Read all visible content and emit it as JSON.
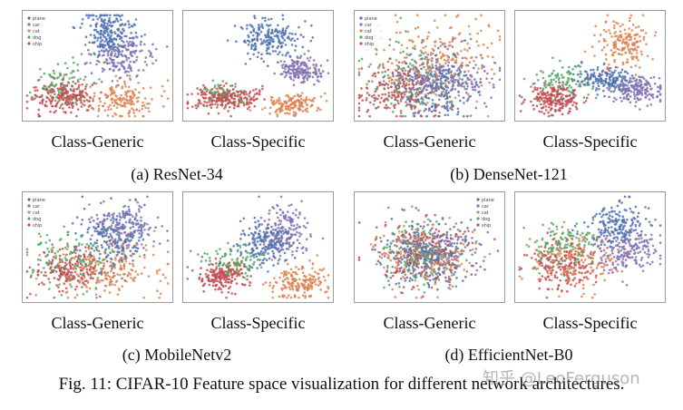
{
  "figure": {
    "caption": "Fig. 11: CIFAR-10 Feature space visualization for different network architectures.",
    "watermark": "知乎 @LeoFerguson",
    "legend_labels": [
      "plane",
      "car",
      "cat",
      "dog",
      "ship"
    ],
    "panel_labels": {
      "generic": "Class-Generic",
      "specific": "Class-Specific"
    },
    "subfigures": [
      {
        "caption": "(a) ResNet-34"
      },
      {
        "caption": "(b) DenseNet-121"
      },
      {
        "caption": "(c) MobileNetv2"
      },
      {
        "caption": "(d) EfficientNet-B0"
      }
    ]
  },
  "chart_data": [
    {
      "type": "scatter",
      "architecture": "ResNet-34",
      "panel": "Class-Generic",
      "legend": "top-left",
      "clusters": [
        {
          "name": "plane",
          "color": "#4c72b0",
          "cx": 0.58,
          "cy": 0.22,
          "sx": 0.08,
          "sy": 0.12,
          "n": 220
        },
        {
          "name": "ship",
          "color": "#8172b2",
          "cx": 0.66,
          "cy": 0.42,
          "sx": 0.1,
          "sy": 0.1,
          "n": 170
        },
        {
          "name": "car",
          "color": "#dd8452",
          "cx": 0.66,
          "cy": 0.8,
          "sx": 0.13,
          "sy": 0.09,
          "n": 170
        },
        {
          "name": "cat",
          "color": "#55a868",
          "cx": 0.26,
          "cy": 0.66,
          "sx": 0.1,
          "sy": 0.12,
          "n": 90
        },
        {
          "name": "dog",
          "color": "#c44e52",
          "cx": 0.27,
          "cy": 0.78,
          "sx": 0.11,
          "sy": 0.07,
          "n": 220
        }
      ]
    },
    {
      "type": "scatter",
      "architecture": "ResNet-34",
      "panel": "Class-Specific",
      "legend": "none",
      "clusters": [
        {
          "name": "plane",
          "color": "#4c72b0",
          "cx": 0.58,
          "cy": 0.25,
          "sx": 0.1,
          "sy": 0.09,
          "n": 200
        },
        {
          "name": "ship",
          "color": "#8172b2",
          "cx": 0.78,
          "cy": 0.53,
          "sx": 0.08,
          "sy": 0.06,
          "n": 170
        },
        {
          "name": "car",
          "color": "#dd8452",
          "cx": 0.73,
          "cy": 0.85,
          "sx": 0.09,
          "sy": 0.05,
          "n": 160
        },
        {
          "name": "cat",
          "color": "#55a868",
          "cx": 0.26,
          "cy": 0.76,
          "sx": 0.08,
          "sy": 0.06,
          "n": 60
        },
        {
          "name": "dog",
          "color": "#c44e52",
          "cx": 0.27,
          "cy": 0.79,
          "sx": 0.12,
          "sy": 0.05,
          "n": 230
        }
      ]
    },
    {
      "type": "scatter",
      "architecture": "DenseNet-121",
      "panel": "Class-Generic",
      "legend": "top-left",
      "clusters": [
        {
          "name": "plane",
          "color": "#4c72b0",
          "cx": 0.55,
          "cy": 0.68,
          "sx": 0.14,
          "sy": 0.14,
          "n": 210
        },
        {
          "name": "ship",
          "color": "#8172b2",
          "cx": 0.58,
          "cy": 0.66,
          "sx": 0.18,
          "sy": 0.14,
          "n": 200
        },
        {
          "name": "car",
          "color": "#dd8452",
          "cx": 0.55,
          "cy": 0.45,
          "sx": 0.2,
          "sy": 0.2,
          "n": 230
        },
        {
          "name": "cat",
          "color": "#55a868",
          "cx": 0.35,
          "cy": 0.62,
          "sx": 0.18,
          "sy": 0.18,
          "n": 120
        },
        {
          "name": "dog",
          "color": "#c44e52",
          "cx": 0.3,
          "cy": 0.74,
          "sx": 0.15,
          "sy": 0.12,
          "n": 200
        }
      ]
    },
    {
      "type": "scatter",
      "architecture": "DenseNet-121",
      "panel": "Class-Specific",
      "legend": "none",
      "clusters": [
        {
          "name": "plane",
          "color": "#4c72b0",
          "cx": 0.6,
          "cy": 0.62,
          "sx": 0.1,
          "sy": 0.06,
          "n": 180
        },
        {
          "name": "ship",
          "color": "#8172b2",
          "cx": 0.82,
          "cy": 0.72,
          "sx": 0.09,
          "sy": 0.06,
          "n": 170
        },
        {
          "name": "car",
          "color": "#dd8452",
          "cx": 0.74,
          "cy": 0.3,
          "sx": 0.1,
          "sy": 0.11,
          "n": 180
        },
        {
          "name": "cat",
          "color": "#55a868",
          "cx": 0.32,
          "cy": 0.65,
          "sx": 0.1,
          "sy": 0.08,
          "n": 100
        },
        {
          "name": "dog",
          "color": "#c44e52",
          "cx": 0.27,
          "cy": 0.8,
          "sx": 0.09,
          "sy": 0.07,
          "n": 210
        }
      ]
    },
    {
      "type": "scatter",
      "architecture": "MobileNetv2",
      "panel": "Class-Generic",
      "legend": "top-left",
      "clusters": [
        {
          "name": "plane",
          "color": "#4c72b0",
          "cx": 0.6,
          "cy": 0.4,
          "sx": 0.12,
          "sy": 0.14,
          "n": 190
        },
        {
          "name": "ship",
          "color": "#8172b2",
          "cx": 0.68,
          "cy": 0.32,
          "sx": 0.1,
          "sy": 0.12,
          "n": 170
        },
        {
          "name": "car",
          "color": "#dd8452",
          "cx": 0.58,
          "cy": 0.7,
          "sx": 0.2,
          "sy": 0.14,
          "n": 200
        },
        {
          "name": "cat",
          "color": "#55a868",
          "cx": 0.32,
          "cy": 0.62,
          "sx": 0.15,
          "sy": 0.13,
          "n": 140
        },
        {
          "name": "dog",
          "color": "#c44e52",
          "cx": 0.3,
          "cy": 0.72,
          "sx": 0.14,
          "sy": 0.1,
          "n": 190
        }
      ]
    },
    {
      "type": "scatter",
      "architecture": "MobileNetv2",
      "panel": "Class-Specific",
      "legend": "none",
      "clusters": [
        {
          "name": "plane",
          "color": "#4c72b0",
          "cx": 0.56,
          "cy": 0.45,
          "sx": 0.1,
          "sy": 0.1,
          "n": 190
        },
        {
          "name": "ship",
          "color": "#8172b2",
          "cx": 0.68,
          "cy": 0.36,
          "sx": 0.08,
          "sy": 0.12,
          "n": 170
        },
        {
          "name": "car",
          "color": "#dd8452",
          "cx": 0.77,
          "cy": 0.82,
          "sx": 0.1,
          "sy": 0.08,
          "n": 180
        },
        {
          "name": "cat",
          "color": "#55a868",
          "cx": 0.33,
          "cy": 0.64,
          "sx": 0.1,
          "sy": 0.07,
          "n": 100
        },
        {
          "name": "dog",
          "color": "#c44e52",
          "cx": 0.26,
          "cy": 0.76,
          "sx": 0.08,
          "sy": 0.07,
          "n": 190
        }
      ]
    },
    {
      "type": "scatter",
      "architecture": "EfficientNet-B0",
      "panel": "Class-Generic",
      "legend": "top-right",
      "clusters": [
        {
          "name": "plane",
          "color": "#4c72b0",
          "cx": 0.46,
          "cy": 0.56,
          "sx": 0.15,
          "sy": 0.14,
          "n": 190
        },
        {
          "name": "ship",
          "color": "#8172b2",
          "cx": 0.5,
          "cy": 0.54,
          "sx": 0.15,
          "sy": 0.14,
          "n": 190
        },
        {
          "name": "car",
          "color": "#dd8452",
          "cx": 0.46,
          "cy": 0.58,
          "sx": 0.15,
          "sy": 0.15,
          "n": 190
        },
        {
          "name": "cat",
          "color": "#55a868",
          "cx": 0.45,
          "cy": 0.58,
          "sx": 0.15,
          "sy": 0.14,
          "n": 170
        },
        {
          "name": "dog",
          "color": "#c44e52",
          "cx": 0.48,
          "cy": 0.56,
          "sx": 0.15,
          "sy": 0.14,
          "n": 190
        }
      ]
    },
    {
      "type": "scatter",
      "architecture": "EfficientNet-B0",
      "panel": "Class-Specific",
      "legend": "none",
      "clusters": [
        {
          "name": "plane",
          "color": "#4c72b0",
          "cx": 0.68,
          "cy": 0.3,
          "sx": 0.1,
          "sy": 0.1,
          "n": 170
        },
        {
          "name": "ship",
          "color": "#8172b2",
          "cx": 0.76,
          "cy": 0.52,
          "sx": 0.1,
          "sy": 0.1,
          "n": 190
        },
        {
          "name": "car",
          "color": "#dd8452",
          "cx": 0.4,
          "cy": 0.62,
          "sx": 0.14,
          "sy": 0.14,
          "n": 170
        },
        {
          "name": "cat",
          "color": "#55a868",
          "cx": 0.34,
          "cy": 0.5,
          "sx": 0.12,
          "sy": 0.11,
          "n": 130
        },
        {
          "name": "dog",
          "color": "#c44e52",
          "cx": 0.3,
          "cy": 0.66,
          "sx": 0.12,
          "sy": 0.12,
          "n": 180
        }
      ]
    }
  ]
}
